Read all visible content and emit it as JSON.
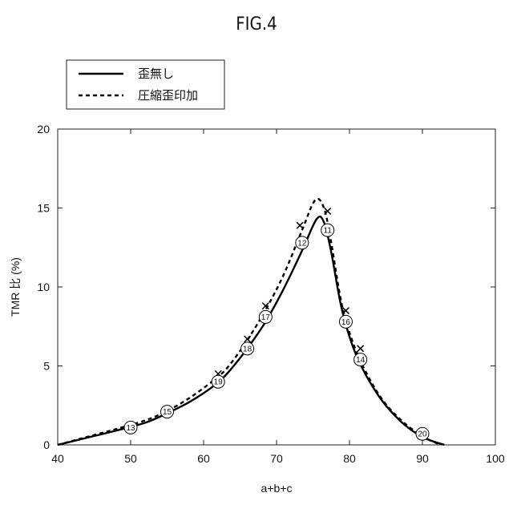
{
  "figure": {
    "title": "FIG.4"
  },
  "chart_data": {
    "type": "line",
    "title": "",
    "xlabel": "a+b+c",
    "ylabel": "TMR 比 (%)",
    "xlim": [
      40,
      100
    ],
    "ylim": [
      0,
      20
    ],
    "xticks": [
      40,
      50,
      60,
      70,
      80,
      90,
      100
    ],
    "yticks": [
      0,
      5,
      10,
      15,
      20
    ],
    "legend": {
      "position": "top-left-outside",
      "entries": [
        {
          "label": "歪無し",
          "style": "solid"
        },
        {
          "label": "圧縮歪印加",
          "style": "dashed"
        }
      ]
    },
    "series": [
      {
        "name": "歪無し",
        "style": "solid",
        "color": "#000000",
        "x": [
          40,
          44,
          48,
          52,
          55,
          58,
          61,
          63,
          65,
          66.3,
          68.5,
          71,
          73.5,
          75.5,
          76.5,
          77.5,
          79,
          81,
          84,
          87,
          90,
          93
        ],
        "y": [
          0,
          0.45,
          0.9,
          1.4,
          2.0,
          2.7,
          3.6,
          4.4,
          5.5,
          6.3,
          7.8,
          9.9,
          12.3,
          14.3,
          14.1,
          12.2,
          8.5,
          5.6,
          3.1,
          1.5,
          0.5,
          0
        ]
      },
      {
        "name": "圧縮歪印加",
        "style": "dashed",
        "color": "#000000",
        "x": [
          40,
          44,
          48,
          52,
          55,
          58,
          61,
          63,
          65,
          66.3,
          68.5,
          71,
          73.5,
          75.3,
          76.5,
          77.5,
          79,
          81,
          84,
          87,
          90,
          92.5
        ],
        "y": [
          0,
          0.5,
          1.0,
          1.55,
          2.15,
          2.95,
          3.95,
          4.75,
          5.95,
          6.85,
          8.55,
          10.8,
          13.6,
          15.5,
          15.0,
          12.8,
          8.8,
          5.85,
          3.2,
          1.6,
          0.55,
          0
        ]
      }
    ],
    "markers_circle": [
      {
        "label": "13",
        "x": 50,
        "y": 1.1
      },
      {
        "label": "15",
        "x": 55,
        "y": 2.1
      },
      {
        "label": "19",
        "x": 62,
        "y": 4.0
      },
      {
        "label": "18",
        "x": 66,
        "y": 6.1
      },
      {
        "label": "17",
        "x": 68.5,
        "y": 8.1
      },
      {
        "label": "12",
        "x": 73.5,
        "y": 12.8
      },
      {
        "label": "11",
        "x": 77,
        "y": 13.6
      },
      {
        "label": "16",
        "x": 79.5,
        "y": 7.8
      },
      {
        "label": "14",
        "x": 81.5,
        "y": 5.4
      },
      {
        "label": "20",
        "x": 90,
        "y": 0.7
      }
    ],
    "markers_cross": [
      {
        "x": 62,
        "y": 4.5
      },
      {
        "x": 66,
        "y": 6.7
      },
      {
        "x": 68.5,
        "y": 8.8
      },
      {
        "x": 73.2,
        "y": 13.9
      },
      {
        "x": 77,
        "y": 14.8
      },
      {
        "x": 79.5,
        "y": 8.5
      },
      {
        "x": 81.5,
        "y": 6.1
      }
    ]
  }
}
